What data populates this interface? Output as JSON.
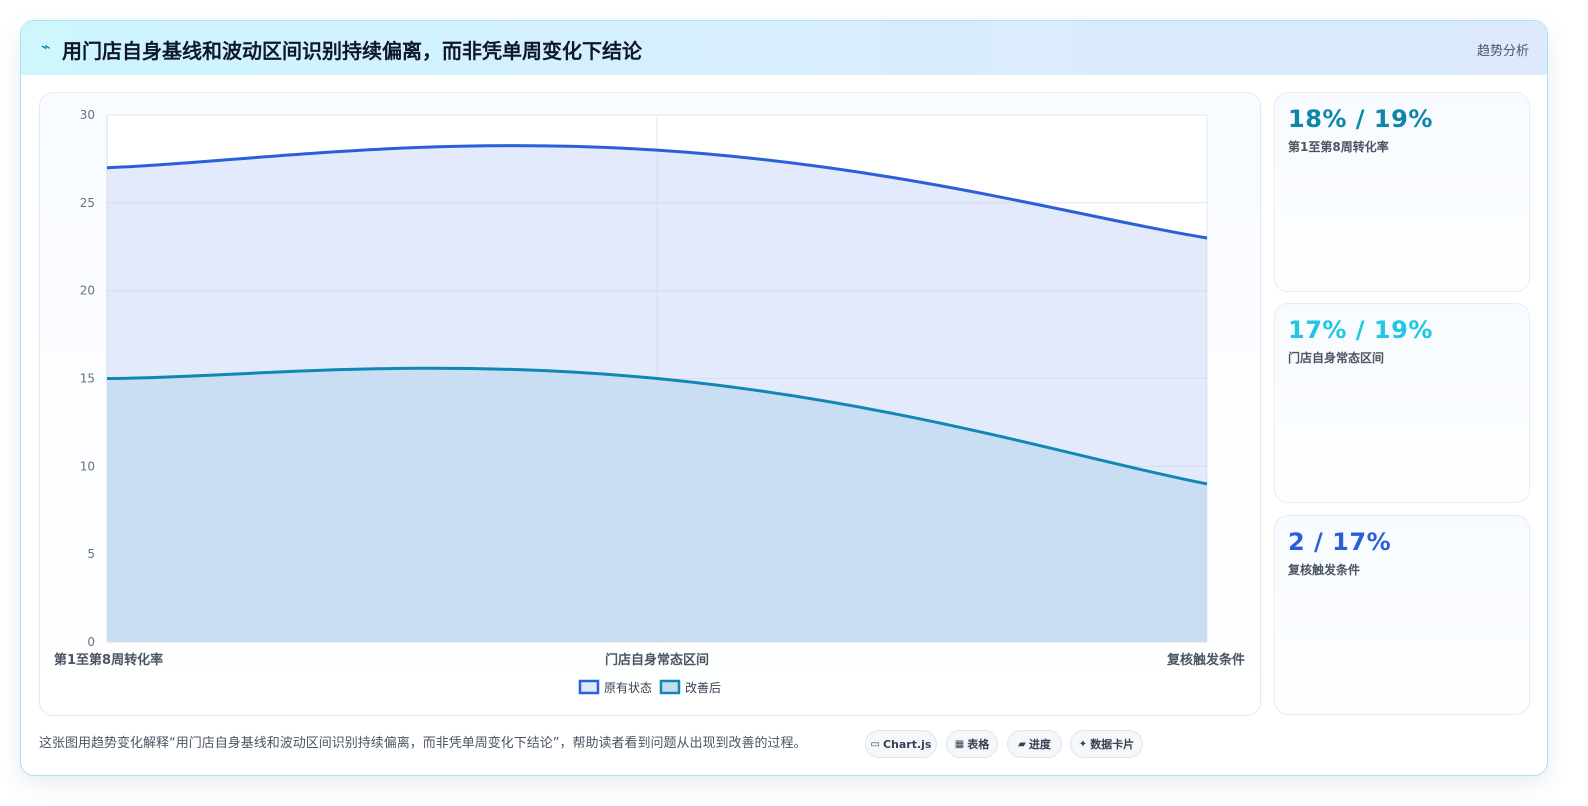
{
  "header": {
    "title": "用门店自身基线和波动区间识别持续偏离，而非凭单周变化下结论",
    "tag": "趋势分析"
  },
  "chart_data": {
    "type": "area",
    "categories": [
      "第1至第8周转化率",
      "门店自身常态区间",
      "复核触发条件"
    ],
    "series": [
      {
        "name": "原有状态",
        "values": [
          27,
          28,
          23
        ],
        "color": "#2b5fd9",
        "fill": "#e0e9fb"
      },
      {
        "name": "改善后",
        "values": [
          15,
          15,
          9
        ],
        "color": "#1187b3",
        "fill": "#c5dcf1"
      }
    ],
    "ylim": [
      0,
      30
    ],
    "yticks": [
      0,
      5,
      10,
      15,
      20,
      25,
      30
    ],
    "grid": true,
    "legend": "bottom"
  },
  "kpis": [
    {
      "value": "18% / 19%",
      "label": "第1至第8周转化率",
      "color": "#0e86a8"
    },
    {
      "value": "17% / 19%",
      "label": "门店自身常态区间",
      "color": "#22c5e3"
    },
    {
      "value": "2 / 17%",
      "label": "复核触发条件",
      "color": "#2b5fd9"
    }
  ],
  "footer": {
    "caption": "这张图用趋势变化解释“用门店自身基线和波动区间识别持续偏离，而非凭单周变化下结论”，帮助读者看到问题从出现到改善的过程。",
    "chips": [
      {
        "icon": "▭",
        "label": "Chart.js",
        "icon_name": "chart-icon"
      },
      {
        "icon": "▦",
        "label": "表格",
        "icon_name": "table-icon"
      },
      {
        "icon": "▰",
        "label": "进度",
        "icon_name": "progress-icon"
      },
      {
        "icon": "✦",
        "label": "数据卡片",
        "icon_name": "card-icon"
      }
    ]
  }
}
